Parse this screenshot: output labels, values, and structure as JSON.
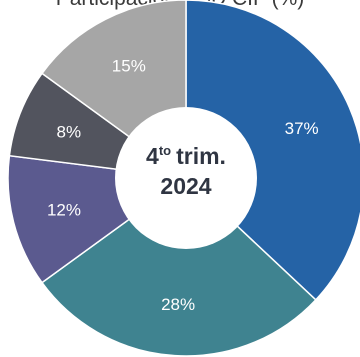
{
  "chart_data": {
    "type": "pie",
    "title": "Participación USD CIF (%)",
    "center_label": {
      "line1_number": "4",
      "line1_superscript": "to",
      "line1_word": "trim.",
      "line2": "2024"
    },
    "categories": [
      "",
      "",
      "",
      "",
      ""
    ],
    "values": [
      37,
      28,
      12,
      8,
      15
    ],
    "value_labels": [
      "37%",
      "28%",
      "12%",
      "8%",
      "15%"
    ],
    "colors": [
      "#2563a6",
      "#3f8390",
      "#5b5a8f",
      "#52545e",
      "#a6a6a6"
    ],
    "donut": true
  }
}
